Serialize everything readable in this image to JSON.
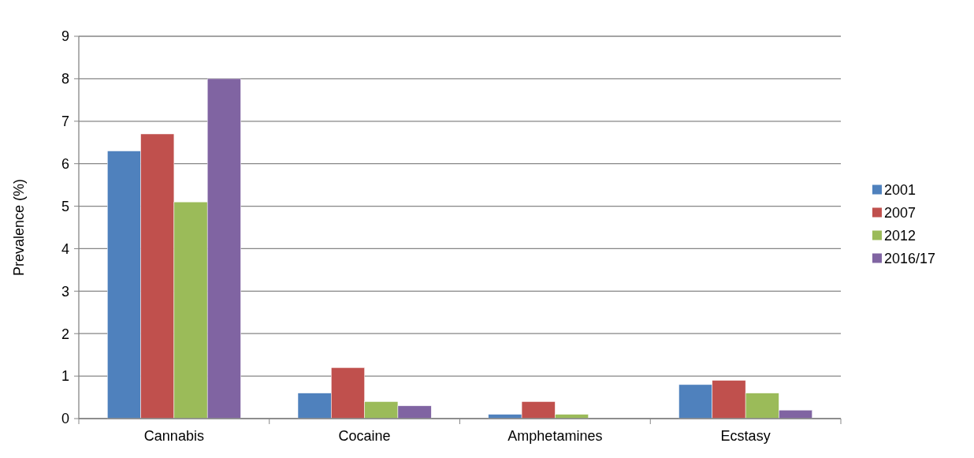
{
  "chart_data": {
    "type": "bar",
    "ylabel": "Prevalence (%)",
    "categories": [
      "Cannabis",
      "Cocaine",
      "Amphetamines",
      "Ecstasy"
    ],
    "series": [
      {
        "name": "2001",
        "color": "#4f81bd",
        "values": [
          6.3,
          0.6,
          0.1,
          0.8
        ]
      },
      {
        "name": "2007",
        "color": "#c0504d",
        "values": [
          6.7,
          1.2,
          0.4,
          0.9
        ]
      },
      {
        "name": "2012",
        "color": "#9bbb59",
        "values": [
          5.1,
          0.4,
          0.1,
          0.6
        ]
      },
      {
        "name": "2016/17",
        "color": "#8064a2",
        "values": [
          8.0,
          0.3,
          null,
          0.2
        ]
      }
    ],
    "ylim": [
      0,
      9
    ],
    "yticks": [
      0,
      1,
      2,
      3,
      4,
      5,
      6,
      7,
      8,
      9
    ],
    "grid": "y",
    "legend": "right"
  }
}
